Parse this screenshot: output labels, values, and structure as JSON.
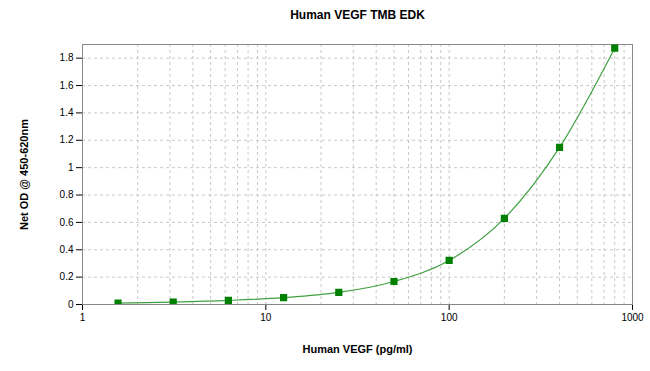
{
  "chart_data": {
    "type": "line",
    "title": "Human VEGF TMB EDK",
    "x_label": "Human VEGF (pg/ml)",
    "y_label": "Net OD @ 450-620nm",
    "x": [
      1.5625,
      3.125,
      6.25,
      12.5,
      25,
      50,
      100,
      200,
      400,
      800
    ],
    "series": [
      {
        "name": "Human VEGF",
        "color": "#008000",
        "marker": "square",
        "line_style": "solid",
        "values": [
          0.01,
          0.018,
          0.03,
          0.05,
          0.088,
          0.168,
          0.322,
          0.629,
          1.148,
          1.873
        ]
      }
    ],
    "xlim": [
      1,
      1000
    ],
    "xticks": [
      1,
      10,
      100,
      1000
    ],
    "ylim": [
      0,
      1.9
    ],
    "yticks": [
      0,
      0.2,
      0.4,
      0.6,
      0.8,
      1,
      1.2,
      1.4,
      1.6,
      1.8
    ],
    "log": "x",
    "grid": true
  }
}
